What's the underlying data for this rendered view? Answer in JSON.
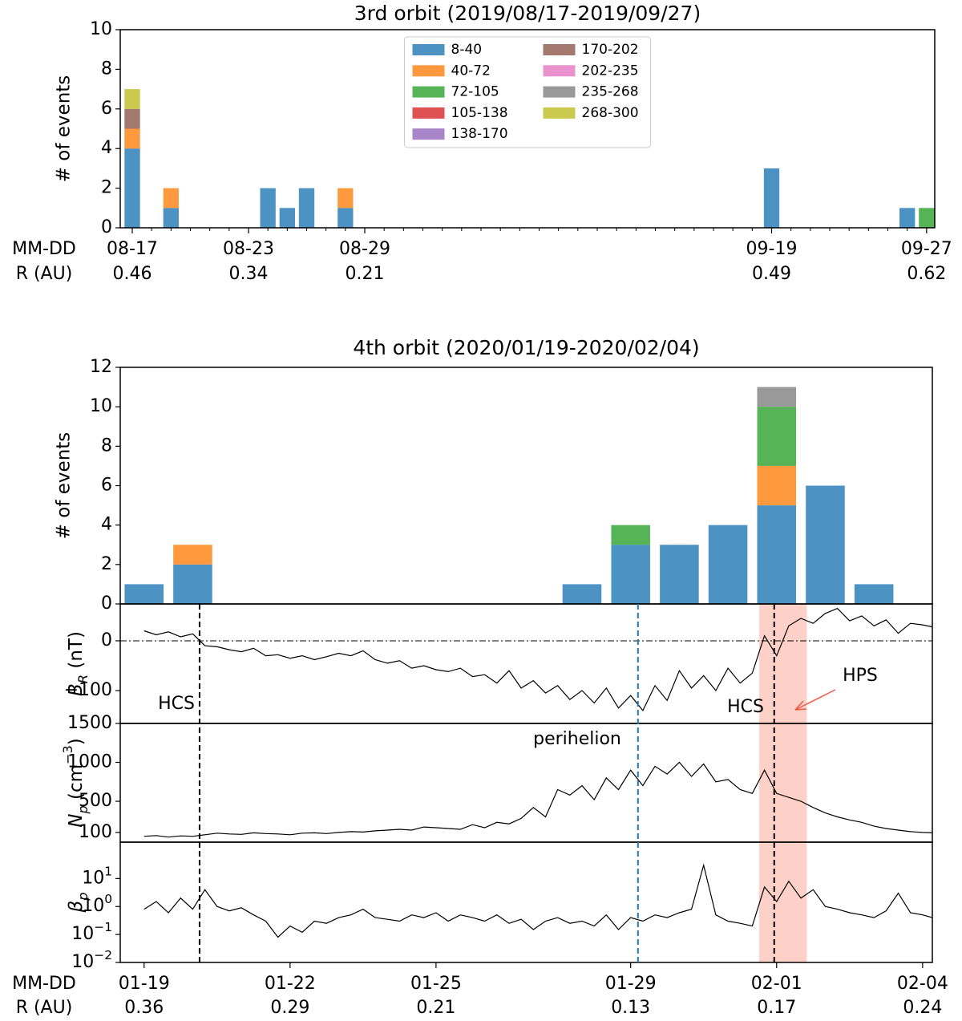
{
  "chart_data": [
    {
      "type": "bar",
      "title": "3rd orbit (2019/08/17-2019/09/27)",
      "ylabel": "# of events",
      "xlabel": "MM-DD",
      "xlabel2": "R (AU)",
      "categories": [
        "08-17",
        null,
        null,
        null,
        null,
        null,
        "08-23",
        null,
        null,
        null,
        null,
        null,
        "08-29",
        null,
        null,
        null,
        null,
        null,
        null,
        null,
        null,
        null,
        null,
        null,
        null,
        null,
        null,
        null,
        null,
        null,
        null,
        null,
        null,
        "09-19",
        null,
        null,
        null,
        null,
        null,
        null,
        null,
        "09-27"
      ],
      "r_labels": [
        0.46,
        null,
        null,
        null,
        null,
        null,
        0.34,
        null,
        null,
        null,
        null,
        null,
        0.21,
        null,
        null,
        null,
        null,
        null,
        null,
        null,
        null,
        null,
        null,
        null,
        null,
        null,
        null,
        null,
        null,
        null,
        null,
        null,
        null,
        0.49,
        null,
        null,
        null,
        null,
        null,
        null,
        null,
        0.62
      ],
      "xlim": [
        -0.62,
        41.42
      ],
      "ylim": [
        0,
        10
      ],
      "yticks": [
        0,
        2,
        4,
        6,
        8,
        10
      ],
      "legend": "upper center",
      "opacity": 0.8,
      "series": [
        {
          "name": "8-40",
          "color": "#1f77b4",
          "values": [
            4,
            0,
            1,
            0,
            0,
            0,
            0,
            2,
            1,
            2,
            0,
            1,
            0,
            0,
            0,
            0,
            0,
            0,
            0,
            0,
            0,
            0,
            0,
            0,
            0,
            0,
            0,
            0,
            0,
            0,
            0,
            0,
            0,
            3,
            0,
            0,
            0,
            0,
            0,
            0,
            1,
            0
          ]
        },
        {
          "name": "40-72",
          "color": "#ff7f0e",
          "values": [
            1,
            0,
            1,
            0,
            0,
            0,
            0,
            0,
            0,
            0,
            0,
            1,
            0,
            0,
            0,
            0,
            0,
            0,
            0,
            0,
            0,
            0,
            0,
            0,
            0,
            0,
            0,
            0,
            0,
            0,
            0,
            0,
            0,
            0,
            0,
            0,
            0,
            0,
            0,
            0,
            0,
            0
          ]
        },
        {
          "name": "72-105",
          "color": "#2ca02c",
          "values": [
            0,
            0,
            0,
            0,
            0,
            0,
            0,
            0,
            0,
            0,
            0,
            0,
            0,
            0,
            0,
            0,
            0,
            0,
            0,
            0,
            0,
            0,
            0,
            0,
            0,
            0,
            0,
            0,
            0,
            0,
            0,
            0,
            0,
            0,
            0,
            0,
            0,
            0,
            0,
            0,
            0,
            1
          ]
        },
        {
          "name": "105-138",
          "color": "#d62728",
          "values": [
            0,
            0,
            0,
            0,
            0,
            0,
            0,
            0,
            0,
            0,
            0,
            0,
            0,
            0,
            0,
            0,
            0,
            0,
            0,
            0,
            0,
            0,
            0,
            0,
            0,
            0,
            0,
            0,
            0,
            0,
            0,
            0,
            0,
            0,
            0,
            0,
            0,
            0,
            0,
            0,
            0,
            0
          ]
        },
        {
          "name": "138-170",
          "color": "#9467bd",
          "values": [
            0,
            0,
            0,
            0,
            0,
            0,
            0,
            0,
            0,
            0,
            0,
            0,
            0,
            0,
            0,
            0,
            0,
            0,
            0,
            0,
            0,
            0,
            0,
            0,
            0,
            0,
            0,
            0,
            0,
            0,
            0,
            0,
            0,
            0,
            0,
            0,
            0,
            0,
            0,
            0,
            0,
            0
          ]
        },
        {
          "name": "170-202",
          "color": "#8c564b",
          "values": [
            1,
            0,
            0,
            0,
            0,
            0,
            0,
            0,
            0,
            0,
            0,
            0,
            0,
            0,
            0,
            0,
            0,
            0,
            0,
            0,
            0,
            0,
            0,
            0,
            0,
            0,
            0,
            0,
            0,
            0,
            0,
            0,
            0,
            0,
            0,
            0,
            0,
            0,
            0,
            0,
            0,
            0
          ]
        },
        {
          "name": "202-235",
          "color": "#e377c2",
          "values": [
            0,
            0,
            0,
            0,
            0,
            0,
            0,
            0,
            0,
            0,
            0,
            0,
            0,
            0,
            0,
            0,
            0,
            0,
            0,
            0,
            0,
            0,
            0,
            0,
            0,
            0,
            0,
            0,
            0,
            0,
            0,
            0,
            0,
            0,
            0,
            0,
            0,
            0,
            0,
            0,
            0,
            0
          ]
        },
        {
          "name": "235-268",
          "color": "#7f7f7f",
          "values": [
            0,
            0,
            0,
            0,
            0,
            0,
            0,
            0,
            0,
            0,
            0,
            0,
            0,
            0,
            0,
            0,
            0,
            0,
            0,
            0,
            0,
            0,
            0,
            0,
            0,
            0,
            0,
            0,
            0,
            0,
            0,
            0,
            0,
            0,
            0,
            0,
            0,
            0,
            0,
            0,
            0,
            0
          ]
        },
        {
          "name": "268-300",
          "color": "#bcbd22",
          "values": [
            1,
            0,
            0,
            0,
            0,
            0,
            0,
            0,
            0,
            0,
            0,
            0,
            0,
            0,
            0,
            0,
            0,
            0,
            0,
            0,
            0,
            0,
            0,
            0,
            0,
            0,
            0,
            0,
            0,
            0,
            0,
            0,
            0,
            0,
            0,
            0,
            0,
            0,
            0,
            0,
            0,
            0
          ]
        }
      ]
    },
    {
      "type": "bar",
      "title": "4th orbit (2020/01/19-2020/02/04)",
      "ylabel": "# of events",
      "xlabel": "MM-DD",
      "xlabel2": "R (AU)",
      "categories": [
        "01-19",
        null,
        null,
        "01-22",
        null,
        null,
        "01-25",
        null,
        null,
        null,
        "01-29",
        null,
        null,
        "02-01",
        null,
        null,
        "02-04"
      ],
      "r_labels": [
        0.36,
        null,
        null,
        0.29,
        null,
        null,
        0.21,
        null,
        null,
        null,
        0.13,
        null,
        null,
        0.17,
        null,
        null,
        0.24
      ],
      "xlim": [
        -0.49,
        16.2
      ],
      "ylim": [
        0,
        12
      ],
      "yticks": [
        0,
        2,
        4,
        6,
        8,
        10,
        12
      ],
      "opacity": 0.8,
      "series": [
        {
          "name": "8-40",
          "color": "#1f77b4",
          "values": [
            1,
            2,
            0,
            0,
            0,
            0,
            0,
            0,
            0,
            1,
            3,
            3,
            4,
            5,
            6,
            1,
            0
          ]
        },
        {
          "name": "40-72",
          "color": "#ff7f0e",
          "values": [
            0,
            1,
            0,
            0,
            0,
            0,
            0,
            0,
            0,
            0,
            0,
            0,
            0,
            2,
            0,
            0,
            0
          ]
        },
        {
          "name": "72-105",
          "color": "#2ca02c",
          "values": [
            0,
            0,
            0,
            0,
            0,
            0,
            0,
            0,
            0,
            0,
            1,
            0,
            0,
            3,
            0,
            0,
            0
          ]
        },
        {
          "name": "235-268",
          "color": "#7f7f7f",
          "values": [
            0,
            0,
            0,
            0,
            0,
            0,
            0,
            0,
            0,
            0,
            0,
            0,
            0,
            1,
            0,
            0,
            0
          ]
        }
      ]
    },
    {
      "type": "line",
      "ylabel": "$B_{R}$ (nT)",
      "color": "#000000",
      "hline": 0,
      "xlim": [
        -0.49,
        16.2
      ],
      "ylim": [
        -166,
        74
      ],
      "yticks": [
        0,
        {
          "value": -100,
          "label": "−100"
        }
      ],
      "x": [
        0,
        0.25,
        0.5,
        0.75,
        1,
        1.25,
        1.5,
        1.75,
        2,
        2.25,
        2.5,
        2.75,
        3,
        3.25,
        3.5,
        3.75,
        4,
        4.25,
        4.5,
        4.75,
        5,
        5.25,
        5.5,
        5.75,
        6,
        6.25,
        6.5,
        6.75,
        7,
        7.25,
        7.5,
        7.75,
        8,
        8.25,
        8.5,
        8.75,
        9,
        9.25,
        9.5,
        9.75,
        10,
        10.25,
        10.5,
        10.75,
        11,
        11.25,
        11.5,
        11.75,
        12,
        12.25,
        12.5,
        12.75,
        13,
        13.25,
        13.5,
        13.75,
        14,
        14.25,
        14.5,
        14.75,
        15,
        15.25,
        15.5,
        15.75,
        16,
        16.2
      ],
      "values": [
        20,
        12,
        18,
        8,
        14,
        -10,
        -12,
        -18,
        -22,
        -15,
        -30,
        -28,
        -35,
        -30,
        -38,
        -32,
        -25,
        -30,
        -20,
        -38,
        -45,
        -40,
        -55,
        -50,
        -58,
        -62,
        -55,
        -72,
        -68,
        -85,
        -60,
        -95,
        -80,
        -105,
        -90,
        -118,
        -100,
        -125,
        -95,
        -135,
        -110,
        -140,
        -90,
        -120,
        -60,
        -95,
        -70,
        -100,
        -55,
        -85,
        -65,
        10,
        -30,
        30,
        45,
        35,
        55,
        65,
        40,
        50,
        30,
        42,
        15,
        35,
        32,
        28
      ]
    },
    {
      "type": "line",
      "ylabel": "$N_{p}$ (cm^{−3})",
      "color": "#000000",
      "xlim": [
        -0.49,
        16.2
      ],
      "ylim": [
        -25,
        1500
      ],
      "yticks": [
        100,
        500,
        1000,
        1500
      ],
      "x": [
        0,
        0.25,
        0.5,
        0.75,
        1,
        1.25,
        1.5,
        1.75,
        2,
        2.25,
        2.5,
        2.75,
        3,
        3.25,
        3.5,
        3.75,
        4,
        4.25,
        4.5,
        4.75,
        5,
        5.25,
        5.5,
        5.75,
        6,
        6.25,
        6.5,
        6.75,
        7,
        7.25,
        7.5,
        7.75,
        8,
        8.25,
        8.5,
        8.75,
        9,
        9.25,
        9.5,
        9.75,
        10,
        10.25,
        10.5,
        10.75,
        11,
        11.25,
        11.5,
        11.75,
        12,
        12.25,
        12.5,
        12.75,
        13,
        13.25,
        13.5,
        13.75,
        14,
        14.25,
        14.5,
        14.75,
        15,
        15.25,
        15.5,
        15.75,
        16,
        16.2
      ],
      "values": [
        50,
        60,
        40,
        55,
        50,
        70,
        90,
        80,
        75,
        95,
        85,
        80,
        70,
        90,
        95,
        85,
        100,
        110,
        105,
        120,
        130,
        140,
        130,
        170,
        160,
        150,
        140,
        200,
        160,
        230,
        210,
        280,
        420,
        300,
        650,
        580,
        700,
        520,
        800,
        650,
        900,
        700,
        950,
        850,
        1000,
        820,
        980,
        750,
        780,
        650,
        600,
        900,
        600,
        550,
        500,
        420,
        350,
        300,
        260,
        230,
        180,
        150,
        130,
        110,
        100,
        95
      ]
    },
    {
      "type": "line",
      "ylabel": "$β_{p}$",
      "color": "#000000",
      "log": true,
      "xlim": [
        -0.49,
        16.2
      ],
      "ylim": [
        0.01,
        200
      ],
      "yticks": [
        {
          "value": 10,
          "label": "10^{1}"
        },
        {
          "value": 1,
          "label": "10^{0}"
        },
        {
          "value": 0.1,
          "label": "10^{−1}"
        },
        {
          "value": 0.01,
          "label": "10^{−2}"
        }
      ],
      "x": [
        0,
        0.25,
        0.5,
        0.75,
        1,
        1.25,
        1.5,
        1.75,
        2,
        2.25,
        2.5,
        2.75,
        3,
        3.25,
        3.5,
        3.75,
        4,
        4.25,
        4.5,
        4.75,
        5,
        5.25,
        5.5,
        5.75,
        6,
        6.25,
        6.5,
        6.75,
        7,
        7.25,
        7.5,
        7.75,
        8,
        8.25,
        8.5,
        8.75,
        9,
        9.25,
        9.5,
        9.75,
        10,
        10.25,
        10.5,
        10.75,
        11,
        11.25,
        11.5,
        11.75,
        12,
        12.25,
        12.5,
        12.75,
        13,
        13.25,
        13.5,
        13.75,
        14,
        14.25,
        14.5,
        14.75,
        15,
        15.25,
        15.5,
        15.75,
        16,
        16.2
      ],
      "values": [
        0.8,
        1.5,
        0.6,
        2,
        0.8,
        4,
        1,
        0.7,
        0.9,
        0.5,
        0.3,
        0.08,
        0.2,
        0.12,
        0.3,
        0.25,
        0.4,
        0.5,
        0.8,
        0.4,
        0.35,
        0.3,
        0.5,
        0.4,
        0.6,
        0.3,
        0.5,
        0.4,
        0.3,
        0.5,
        0.25,
        0.35,
        0.15,
        0.3,
        0.4,
        0.25,
        0.3,
        0.2,
        0.5,
        0.15,
        0.4,
        0.3,
        0.5,
        0.4,
        0.6,
        0.8,
        30,
        0.5,
        0.3,
        0.25,
        0.2,
        5,
        1.5,
        8,
        2,
        4,
        1,
        0.8,
        0.6,
        0.5,
        0.4,
        0.7,
        3,
        0.6,
        0.5,
        0.4
      ]
    }
  ],
  "overlays": {
    "vlines": [
      {
        "x": 1.14,
        "color": "#000000"
      },
      {
        "x": 10.15,
        "color": "#1f77b4"
      },
      {
        "x": 12.95,
        "color": "#000000"
      }
    ],
    "span": [
      12.64,
      13.62
    ],
    "span_color": "#fdd0c8"
  },
  "annotations": [
    {
      "text": "HCS",
      "color": "#000000"
    },
    {
      "text": "HCS",
      "color": "#000000"
    },
    {
      "text": "perihelion",
      "color": "#1f77b4"
    },
    {
      "text": "HPS",
      "color": "#f05a46"
    }
  ]
}
